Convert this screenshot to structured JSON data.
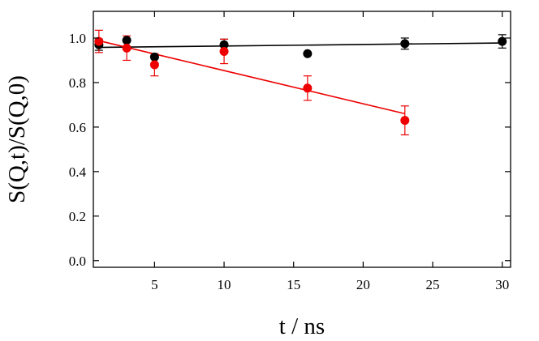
{
  "chart_data": {
    "type": "scatter",
    "xlabel": "t / ns",
    "ylabel": "S(Q,t)/S(Q,0)",
    "xlim": [
      0.6,
      30.6
    ],
    "ylim": [
      -0.03,
      1.12
    ],
    "x_ticks": [
      5,
      10,
      15,
      20,
      25,
      30
    ],
    "y_ticks": [
      0.0,
      0.2,
      0.4,
      0.6,
      0.8,
      1.0
    ],
    "y_tick_labels": [
      "0.0",
      "0.2",
      "0.4",
      "0.6",
      "0.8",
      "1.0"
    ],
    "grid": false,
    "series": [
      {
        "color": "#000000",
        "points": [
          {
            "x": 1,
            "y": 0.97,
            "err": 0.025
          },
          {
            "x": 3,
            "y": 0.99,
            "err": 0.0
          },
          {
            "x": 5,
            "y": 0.915,
            "err": 0.0
          },
          {
            "x": 10,
            "y": 0.97,
            "err": 0.025
          },
          {
            "x": 16,
            "y": 0.93,
            "err": 0.0
          },
          {
            "x": 23,
            "y": 0.975,
            "err": 0.025
          },
          {
            "x": 30,
            "y": 0.985,
            "err": 0.03
          }
        ],
        "fit": {
          "x": [
            1,
            30
          ],
          "y": [
            0.958,
            0.978
          ]
        }
      },
      {
        "color": "#ee0000",
        "points": [
          {
            "x": 1,
            "y": 0.985,
            "err": 0.05
          },
          {
            "x": 3,
            "y": 0.955,
            "err": 0.055
          },
          {
            "x": 5,
            "y": 0.88,
            "err": 0.05
          },
          {
            "x": 10,
            "y": 0.94,
            "err": 0.055
          },
          {
            "x": 16,
            "y": 0.775,
            "err": 0.055
          },
          {
            "x": 23,
            "y": 0.63,
            "err": 0.065
          }
        ],
        "fit": {
          "x": [
            1,
            23
          ],
          "y": [
            0.988,
            0.66
          ]
        }
      }
    ]
  }
}
